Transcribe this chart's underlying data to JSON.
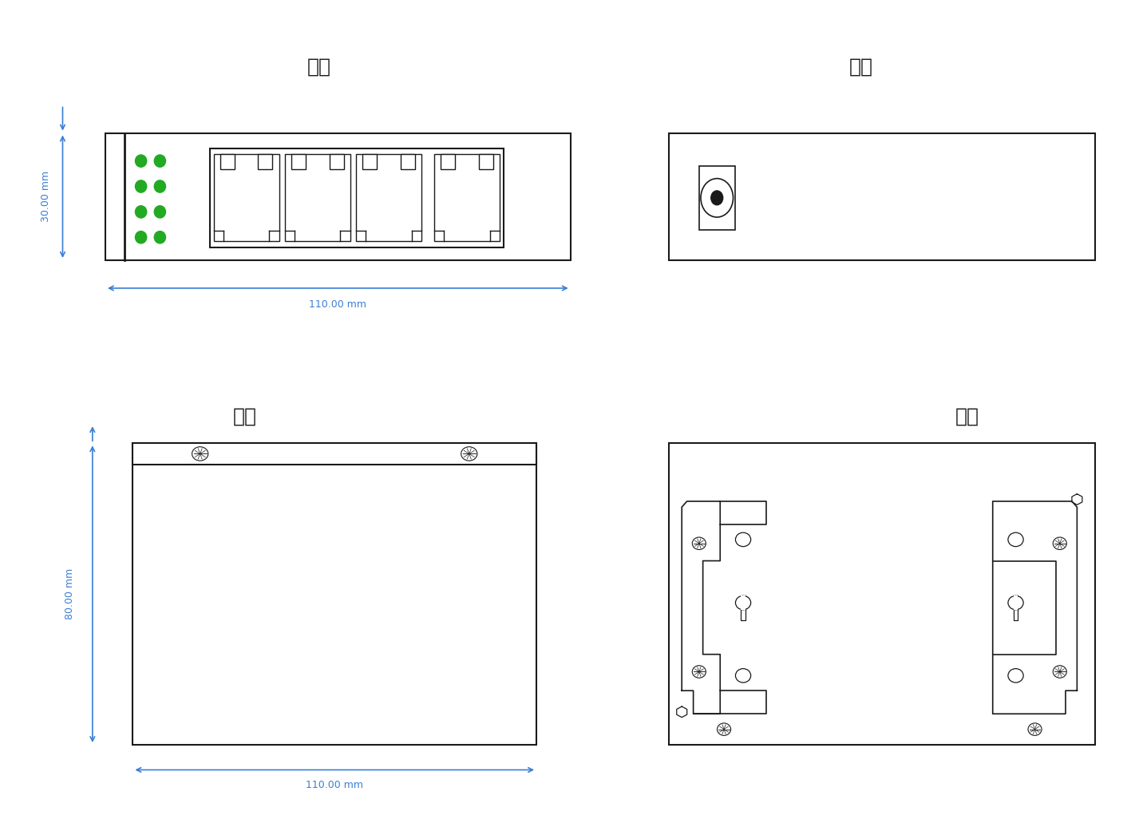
{
  "title_front": "正面",
  "title_back": "背面",
  "title_top": "俯视",
  "title_bottom": "底面",
  "dim_color": "#3a7fd5",
  "line_color": "#1a1a1a",
  "green_color": "#22aa22",
  "bg_color": "#ffffff",
  "front_label_width": "110.00 mm",
  "front_label_height": "30.00 mm",
  "top_label_width": "110.00 mm",
  "top_label_height": "80.00 mm",
  "title_fontsize": 18,
  "dim_fontsize": 9
}
